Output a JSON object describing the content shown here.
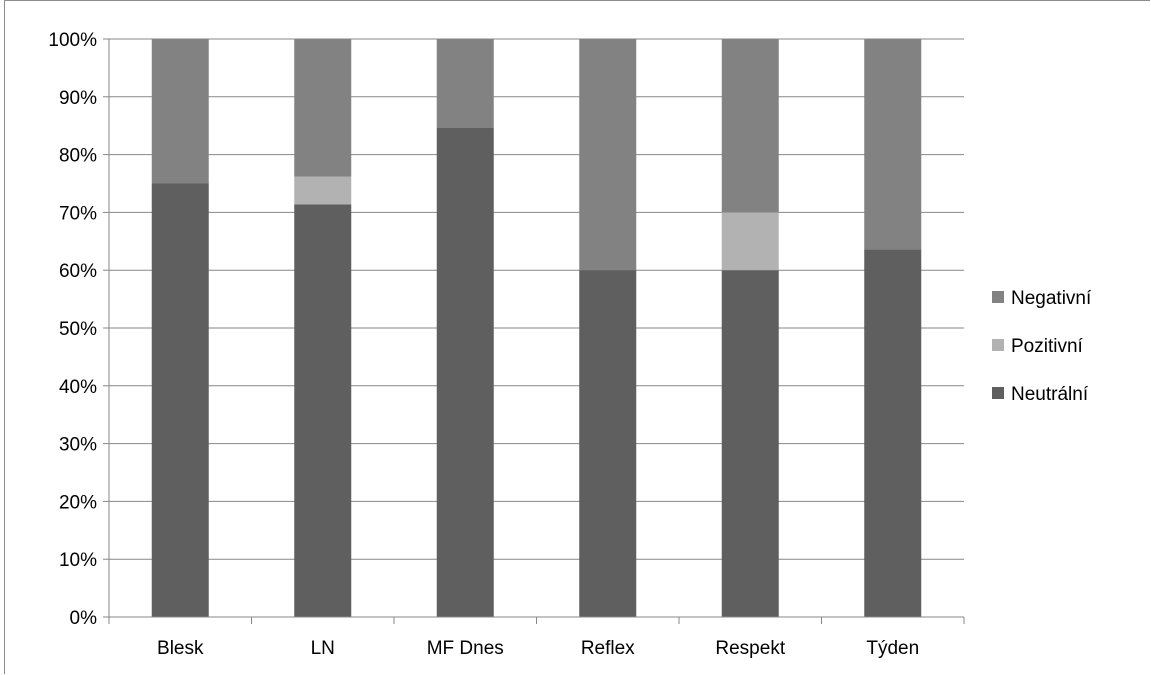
{
  "chart_data": {
    "type": "bar",
    "stacked": true,
    "percent_stacked": true,
    "categories": [
      "Blesk",
      "LN",
      "MF Dnes",
      "Reflex",
      "Respekt",
      "Týden"
    ],
    "series": [
      {
        "name": "Neutrální",
        "color": "#5f5f5f",
        "values": [
          75.0,
          71.4,
          84.6,
          60.0,
          60.0,
          63.6
        ]
      },
      {
        "name": "Pozitivní",
        "color": "#b2b2b2",
        "values": [
          0.0,
          4.8,
          0.0,
          0.0,
          10.0,
          0.0
        ]
      },
      {
        "name": "Negativní",
        "color": "#828282",
        "values": [
          25.0,
          23.8,
          15.4,
          40.0,
          30.0,
          36.4
        ]
      }
    ],
    "ylim": [
      0,
      100
    ],
    "y_ticks": [
      "0%",
      "10%",
      "20%",
      "30%",
      "40%",
      "50%",
      "60%",
      "70%",
      "80%",
      "90%",
      "100%"
    ],
    "grid": true,
    "legend_position": "right",
    "legend_order": [
      "Negativní",
      "Pozitivní",
      "Neutrální"
    ]
  }
}
